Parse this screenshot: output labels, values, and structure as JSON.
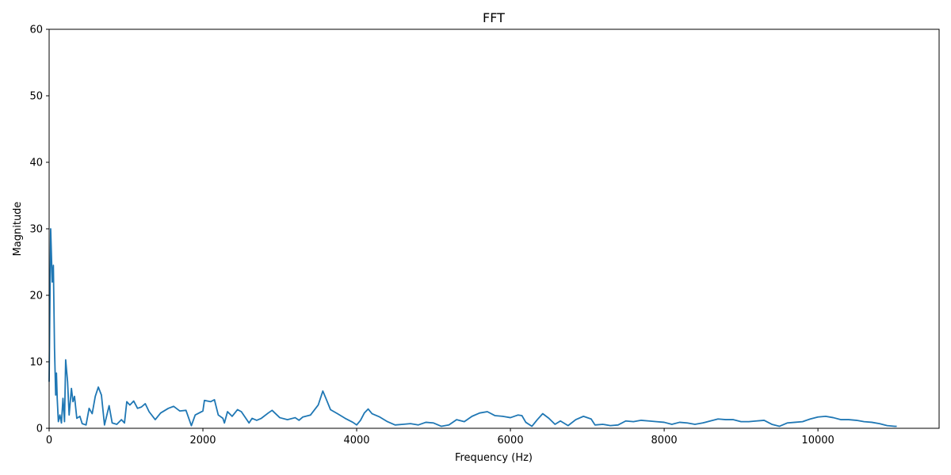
{
  "chart_data": {
    "type": "line",
    "title": "FFT",
    "x_label": "Frequency (Hz)",
    "y_label": "Magnitude",
    "x": [
      0,
      20,
      40,
      55,
      70,
      85,
      95,
      105,
      120,
      140,
      160,
      180,
      200,
      215,
      240,
      260,
      290,
      310,
      330,
      360,
      400,
      430,
      480,
      520,
      560,
      600,
      640,
      680,
      720,
      780,
      820,
      880,
      940,
      980,
      1010,
      1050,
      1100,
      1150,
      1200,
      1250,
      1300,
      1380,
      1450,
      1550,
      1620,
      1700,
      1780,
      1850,
      1900,
      2000,
      2020,
      2100,
      2150,
      2200,
      2260,
      2280,
      2320,
      2380,
      2450,
      2500,
      2600,
      2640,
      2700,
      2760,
      2850,
      2900,
      3000,
      3100,
      3200,
      3250,
      3300,
      3400,
      3500,
      3560,
      3600,
      3660,
      3750,
      3850,
      3950,
      4000,
      4050,
      4100,
      4150,
      4200,
      4300,
      4400,
      4500,
      4600,
      4700,
      4800,
      4900,
      5000,
      5100,
      5200,
      5300,
      5400,
      5500,
      5600,
      5700,
      5800,
      5900,
      6000,
      6100,
      6150,
      6200,
      6280,
      6350,
      6420,
      6500,
      6580,
      6650,
      6750,
      6850,
      6950,
      7050,
      7100,
      7200,
      7300,
      7400,
      7500,
      7600,
      7700,
      7800,
      7900,
      8000,
      8100,
      8200,
      8300,
      8400,
      8500,
      8600,
      8700,
      8800,
      8900,
      9000,
      9100,
      9200,
      9300,
      9400,
      9500,
      9600,
      9700,
      9800,
      9900,
      10000,
      10100,
      10200,
      10300,
      10400,
      10500,
      10600,
      10700,
      10800,
      10900,
      11000,
      11025
    ],
    "series": [
      {
        "color": "#1f77b4",
        "values": [
          7,
          30,
          22,
          24.5,
          12,
          5,
          8.3,
          4.5,
          1,
          2,
          0.8,
          4.5,
          1,
          10.3,
          7,
          2,
          6,
          4,
          4.8,
          1.5,
          1.8,
          0.7,
          0.5,
          3,
          2.2,
          4.8,
          6.2,
          5,
          0.5,
          3.4,
          0.8,
          0.6,
          1.3,
          0.8,
          4,
          3.5,
          4.1,
          3,
          3.2,
          3.7,
          2.5,
          1.3,
          2.3,
          3,
          3.3,
          2.6,
          2.7,
          0.4,
          2,
          2.6,
          4.2,
          4,
          4.3,
          2,
          1.5,
          0.8,
          2.5,
          1.8,
          2.8,
          2.5,
          0.8,
          1.5,
          1.2,
          1.5,
          2.3,
          2.7,
          1.6,
          1.3,
          1.6,
          1.2,
          1.7,
          2,
          3.5,
          5.6,
          4.5,
          2.8,
          2.2,
          1.5,
          0.9,
          0.5,
          1.2,
          2.3,
          2.9,
          2.2,
          1.7,
          1,
          0.5,
          0.6,
          0.7,
          0.5,
          0.9,
          0.8,
          0.3,
          0.5,
          1.3,
          1,
          1.8,
          2.3,
          2.5,
          1.9,
          1.8,
          1.6,
          2,
          1.9,
          0.9,
          0.3,
          1.3,
          2.2,
          1.5,
          0.6,
          1.1,
          0.4,
          1.3,
          1.8,
          1.4,
          0.5,
          0.6,
          0.4,
          0.5,
          1.1,
          1,
          1.2,
          1.1,
          1,
          0.9,
          0.6,
          0.9,
          0.8,
          0.6,
          0.8,
          1.1,
          1.4,
          1.3,
          1.3,
          1,
          1,
          1.1,
          1.2,
          0.6,
          0.3,
          0.8,
          0.9,
          1,
          1.4,
          1.7,
          1.8,
          1.6,
          1.3,
          1.3,
          1.2,
          1,
          0.9,
          0.7,
          0.4,
          0.3,
          0.3
        ]
      }
    ],
    "xlim": [
      0,
      11576
    ],
    "ylim": [
      0,
      60
    ],
    "xticks": [
      0,
      2000,
      4000,
      6000,
      8000,
      10000
    ],
    "yticks": [
      0,
      10,
      20,
      30,
      40,
      50,
      60
    ]
  }
}
